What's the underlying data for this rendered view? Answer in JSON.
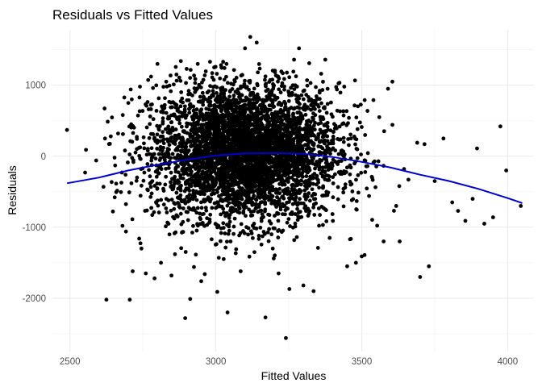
{
  "chart_data": {
    "type": "scatter",
    "title": "Residuals vs Fitted Values",
    "xlabel": "Fitted Values",
    "ylabel": "Residuals",
    "xlim": [
      2440,
      4090
    ],
    "ylim": [
      -2750,
      1780
    ],
    "x_ticks": [
      2500,
      3000,
      3500,
      4000
    ],
    "y_ticks": [
      -2000,
      -1000,
      0,
      1000
    ],
    "x_tick_labels": [
      "2500",
      "3000",
      "3500",
      "4000"
    ],
    "y_tick_labels": [
      "-2000",
      "-1000",
      "0",
      "1000"
    ],
    "grid": true,
    "legend": "none",
    "point_color": "#000000",
    "smooth_color": "#0000cc",
    "points": [
      [
        2490,
        370
      ],
      [
        2555,
        90
      ],
      [
        2552,
        -230
      ],
      [
        2590,
        -60
      ],
      [
        2615,
        -430
      ],
      [
        2625,
        -2020
      ],
      [
        2640,
        280
      ],
      [
        2655,
        -130
      ],
      [
        2665,
        320
      ],
      [
        2680,
        -980
      ],
      [
        2692,
        -1060
      ],
      [
        2700,
        750
      ],
      [
        2705,
        -2020
      ],
      [
        2710,
        450
      ],
      [
        2715,
        -1620
      ],
      [
        2730,
        -300
      ],
      [
        2740,
        980
      ],
      [
        2745,
        -1300
      ],
      [
        2760,
        -1650
      ],
      [
        2775,
        560
      ],
      [
        2790,
        -1720
      ],
      [
        2800,
        1300
      ],
      [
        2812,
        -1500
      ],
      [
        2830,
        1050
      ],
      [
        2848,
        -1680
      ],
      [
        2860,
        -1380
      ],
      [
        2865,
        1150
      ],
      [
        2880,
        1340
      ],
      [
        2895,
        -2280
      ],
      [
        2900,
        1230
      ],
      [
        2905,
        -900
      ],
      [
        2912,
        -2010
      ],
      [
        2925,
        -1560
      ],
      [
        2938,
        1300
      ],
      [
        2950,
        -1760
      ],
      [
        2962,
        -1660
      ],
      [
        2980,
        1330
      ],
      [
        3005,
        -1910
      ],
      [
        3010,
        -1430
      ],
      [
        3025,
        1330
      ],
      [
        3040,
        -2200
      ],
      [
        3060,
        1010
      ],
      [
        3085,
        -1620
      ],
      [
        3100,
        1520
      ],
      [
        3118,
        1680
      ],
      [
        3140,
        1600
      ],
      [
        3170,
        -2270
      ],
      [
        3195,
        -1300
      ],
      [
        3215,
        -1650
      ],
      [
        3240,
        -2560
      ],
      [
        3252,
        -1870
      ],
      [
        3268,
        1360
      ],
      [
        3285,
        1520
      ],
      [
        3300,
        -1820
      ],
      [
        3320,
        1310
      ],
      [
        3335,
        -1900
      ],
      [
        3350,
        -1290
      ],
      [
        3375,
        1360
      ],
      [
        3390,
        -1150
      ],
      [
        3415,
        940
      ],
      [
        3440,
        980
      ],
      [
        3450,
        -1550
      ],
      [
        3480,
        -1500
      ],
      [
        3500,
        -1410
      ],
      [
        3510,
        790
      ],
      [
        3525,
        -560
      ],
      [
        3540,
        790
      ],
      [
        3560,
        550
      ],
      [
        3575,
        -1200
      ],
      [
        3590,
        950
      ],
      [
        3605,
        1050
      ],
      [
        3618,
        -700
      ],
      [
        3630,
        -1200
      ],
      [
        3645,
        -180
      ],
      [
        3660,
        -330
      ],
      [
        3690,
        190
      ],
      [
        3700,
        -1700
      ],
      [
        3715,
        170
      ],
      [
        3730,
        -1550
      ],
      [
        3750,
        -350
      ],
      [
        3780,
        250
      ],
      [
        3810,
        -650
      ],
      [
        3830,
        -770
      ],
      [
        3855,
        -910
      ],
      [
        3880,
        -600
      ],
      [
        3895,
        110
      ],
      [
        3920,
        -950
      ],
      [
        3950,
        -860
      ],
      [
        3975,
        420
      ],
      [
        3995,
        -200
      ],
      [
        4045,
        -700
      ]
    ],
    "dense_region": {
      "x_mean": 3100,
      "x_sd": 160,
      "y_mean": 60,
      "y_sd": 480,
      "n": 4300
    },
    "smooth_line": {
      "x": [
        2490,
        2600,
        2700,
        2800,
        2900,
        3000,
        3100,
        3200,
        3300,
        3400,
        3500,
        3600,
        3700,
        3800,
        3900,
        4000,
        4050
      ],
      "y": [
        -380,
        -300,
        -200,
        -120,
        -50,
        10,
        40,
        45,
        35,
        -10,
        -80,
        -160,
        -260,
        -350,
        -460,
        -590,
        -660
      ]
    }
  }
}
